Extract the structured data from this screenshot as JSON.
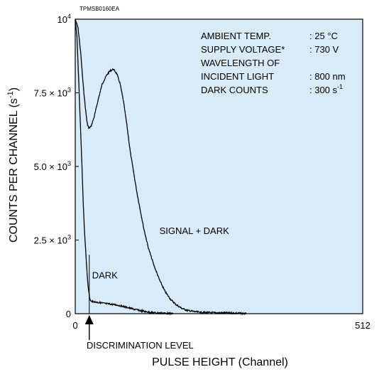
{
  "chart_data": {
    "type": "line",
    "code": "TPMSB0160EA",
    "xlabel": "PULSE HEIGHT (Channel)",
    "ylabel": "COUNTS PER CHANNEL (s-1)",
    "ylabel_main": "COUNTS PER CHANNEL (s",
    "ylabel_sup": "-1",
    "ylabel_close": ")",
    "xlim": [
      0,
      512
    ],
    "ylim": [
      0,
      10000
    ],
    "x_ticks": [
      {
        "value": 0,
        "label": "0"
      },
      {
        "value": 512,
        "label": "512"
      }
    ],
    "y_ticks": [
      {
        "value": 0,
        "mant": "0",
        "exp": ""
      },
      {
        "value": 2500,
        "mant": "2.5 × 10",
        "exp": "3"
      },
      {
        "value": 5000,
        "mant": "5.0 × 10",
        "exp": "3"
      },
      {
        "value": 7500,
        "mant": "7.5 × 10",
        "exp": "3"
      },
      {
        "value": 10000,
        "mant": "10",
        "exp": "4"
      }
    ],
    "annotation_lines": [
      {
        "label": "AMBIENT TEMP.",
        "value": ": 25 °C",
        "sup": ""
      },
      {
        "label": "SUPPLY VOLTAGE*",
        "value": ": 730 V",
        "sup": ""
      },
      {
        "label": "WAVELENGTH OF",
        "value": "",
        "sup": ""
      },
      {
        "label": "INCIDENT LIGHT",
        "value": ": 800 nm",
        "sup": ""
      },
      {
        "label": "DARK COUNTS",
        "value": ": 300 s",
        "sup": "-1"
      }
    ],
    "discrimination": {
      "label": "DISCRIMINATION LEVEL",
      "x": 25
    },
    "series": [
      {
        "name": "SIGNAL + DARK",
        "label_at": [
          150,
          2700
        ],
        "points": [
          [
            0,
            10000
          ],
          [
            5,
            9700
          ],
          [
            10,
            8800
          ],
          [
            14,
            7800
          ],
          [
            18,
            7000
          ],
          [
            21,
            6500
          ],
          [
            24,
            6300
          ],
          [
            28,
            6350
          ],
          [
            34,
            6700
          ],
          [
            40,
            7200
          ],
          [
            48,
            7800
          ],
          [
            56,
            8100
          ],
          [
            62,
            8250
          ],
          [
            68,
            8300
          ],
          [
            74,
            8150
          ],
          [
            80,
            7800
          ],
          [
            86,
            7200
          ],
          [
            92,
            6400
          ],
          [
            98,
            5500
          ],
          [
            104,
            4800
          ],
          [
            110,
            4100
          ],
          [
            116,
            3500
          ],
          [
            122,
            2900
          ],
          [
            130,
            2250
          ],
          [
            140,
            1650
          ],
          [
            150,
            1150
          ],
          [
            160,
            750
          ],
          [
            170,
            480
          ],
          [
            180,
            300
          ],
          [
            190,
            180
          ],
          [
            200,
            110
          ],
          [
            215,
            60
          ],
          [
            230,
            40
          ],
          [
            250,
            30
          ],
          [
            270,
            25
          ],
          [
            280,
            20
          ],
          [
            295,
            10
          ],
          [
            305,
            0
          ]
        ]
      },
      {
        "name": "DARK",
        "label_at": [
          30,
          1200
        ],
        "points": [
          [
            0,
            10000
          ],
          [
            3,
            9400
          ],
          [
            6,
            8000
          ],
          [
            9,
            6500
          ],
          [
            12,
            5000
          ],
          [
            14,
            3900
          ],
          [
            16,
            3000
          ],
          [
            18,
            2300
          ],
          [
            20,
            1700
          ],
          [
            22,
            1150
          ],
          [
            24,
            750
          ],
          [
            26,
            500
          ],
          [
            28,
            420
          ],
          [
            35,
            400
          ],
          [
            45,
            370
          ],
          [
            55,
            340
          ],
          [
            65,
            320
          ],
          [
            75,
            290
          ],
          [
            85,
            250
          ],
          [
            95,
            200
          ],
          [
            105,
            150
          ],
          [
            115,
            110
          ],
          [
            125,
            70
          ],
          [
            135,
            40
          ],
          [
            150,
            20
          ],
          [
            165,
            10
          ],
          [
            175,
            0
          ]
        ]
      }
    ]
  }
}
